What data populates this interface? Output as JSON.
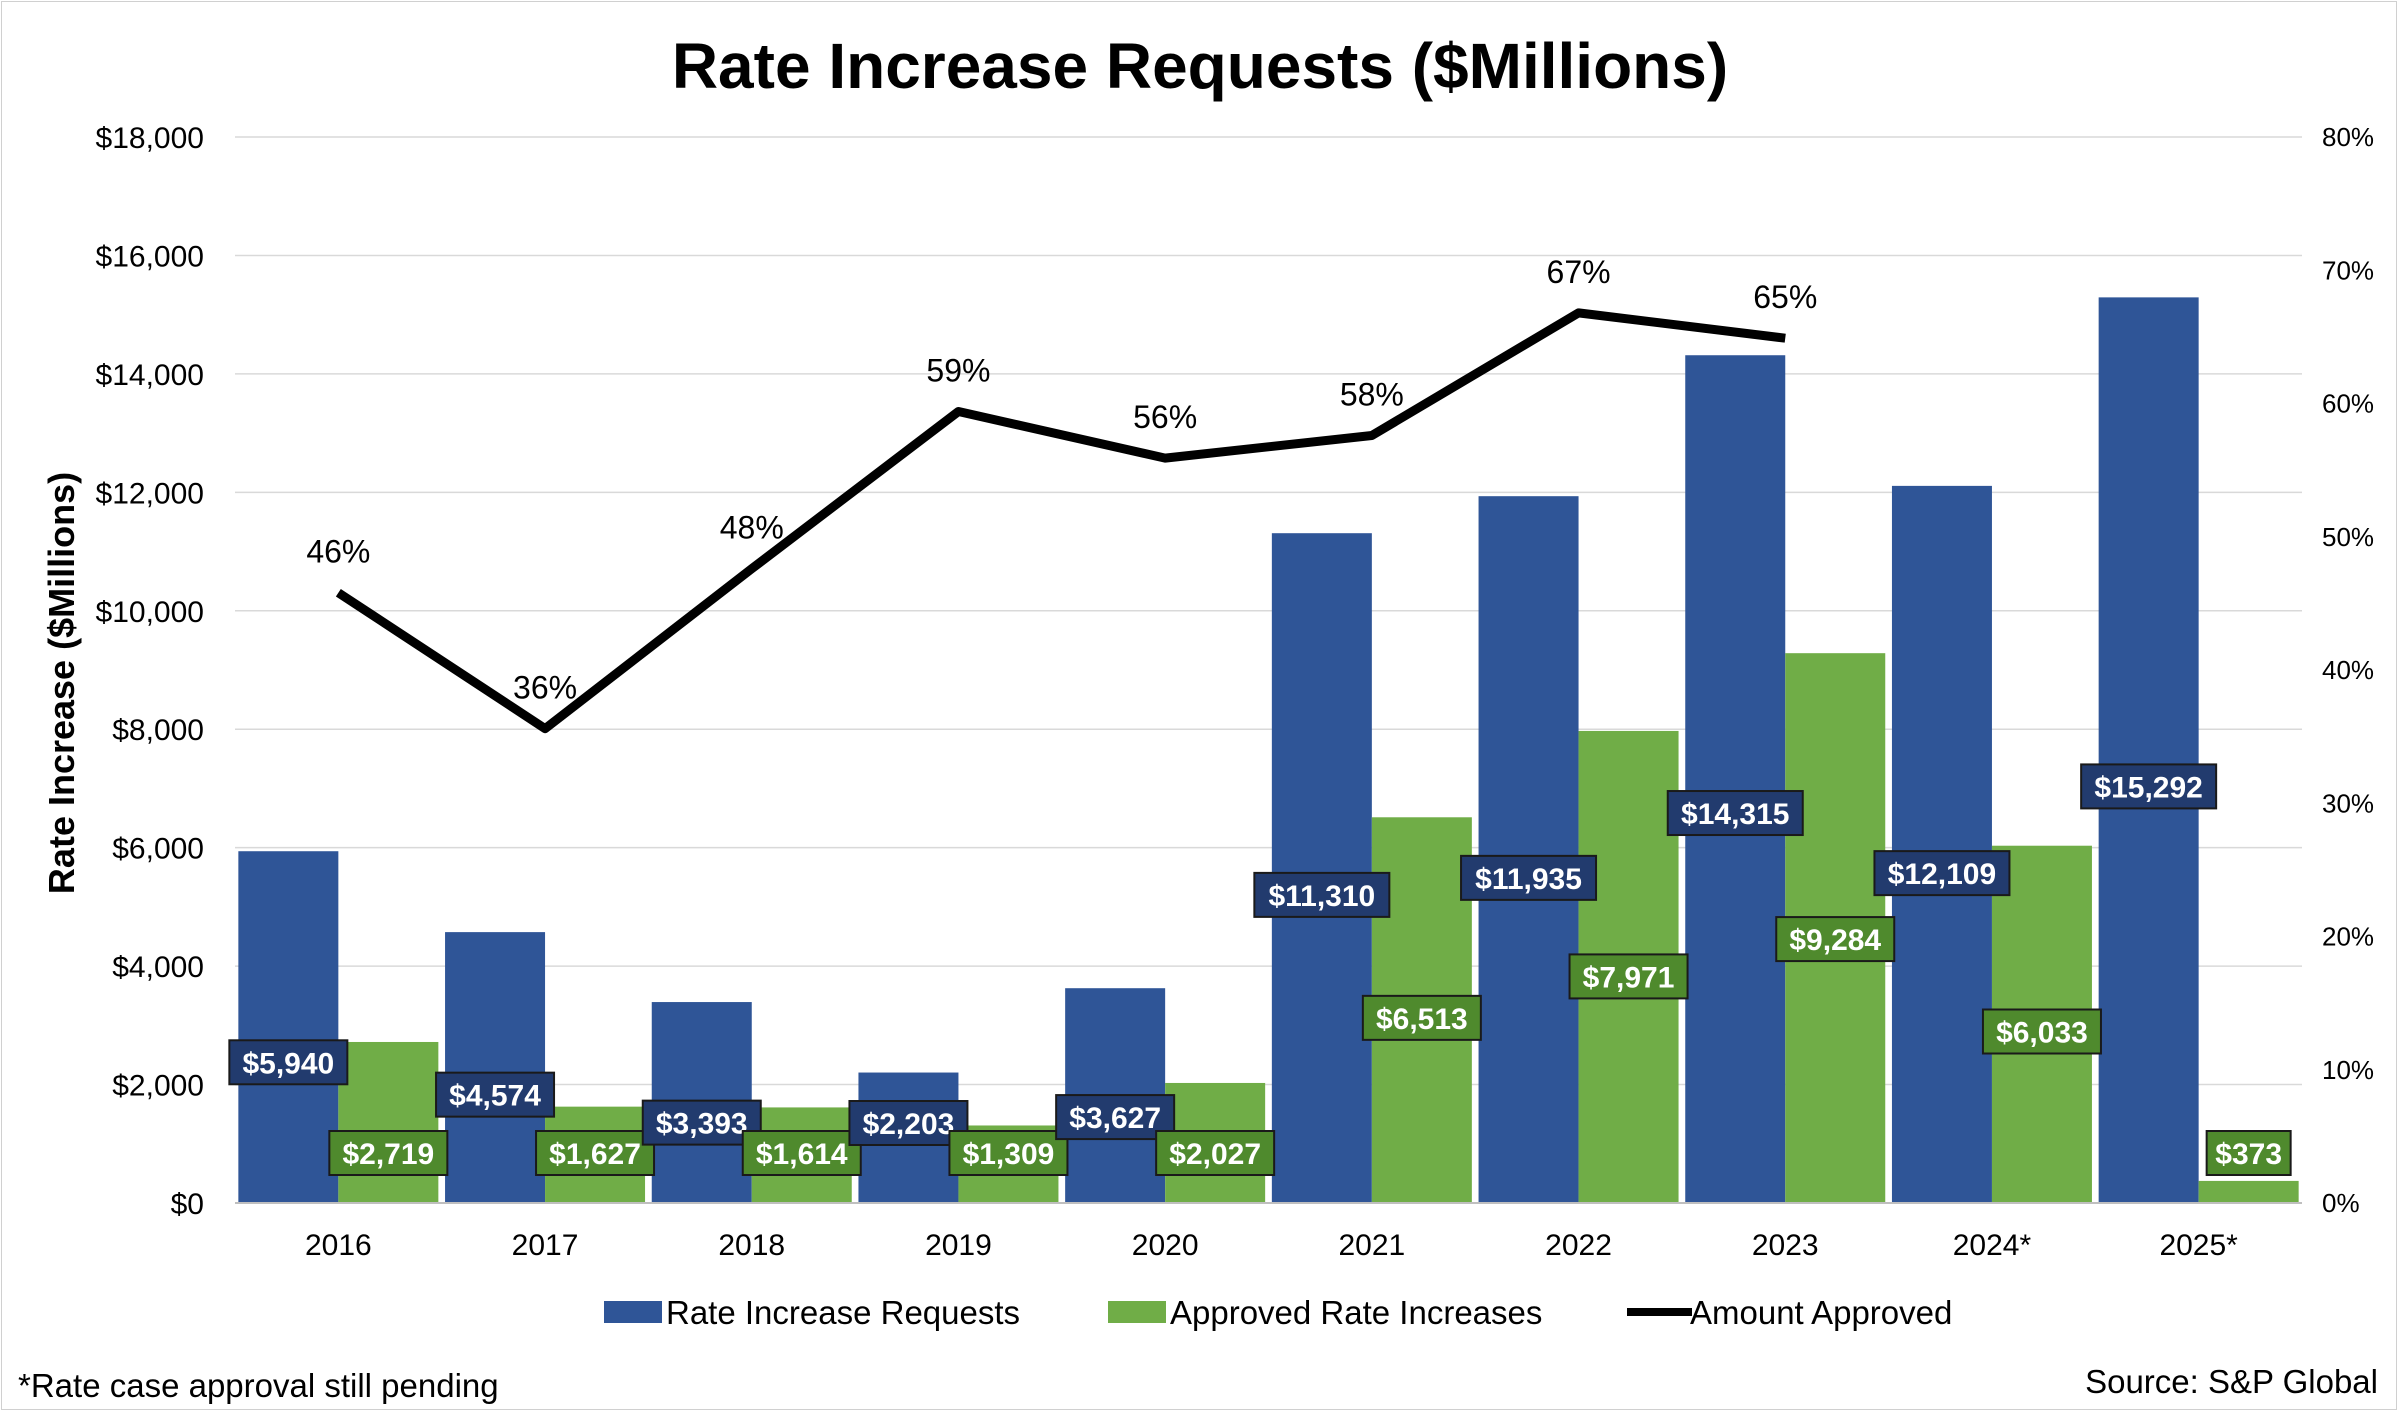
{
  "chart_data": {
    "type": "bar",
    "title": "Rate Increase Requests ($Millions)",
    "ylabel": "Rate Increase ($Millions)",
    "ylim": [
      0,
      18000
    ],
    "y_ticks": [
      "$0",
      "$2,000",
      "$4,000",
      "$6,000",
      "$8,000",
      "$10,000",
      "$12,000",
      "$14,000",
      "$16,000",
      "$18,000"
    ],
    "y2lim": [
      0,
      80
    ],
    "y2_ticks": [
      "0%",
      "10%",
      "20%",
      "30%",
      "40%",
      "50%",
      "60%",
      "70%",
      "80%"
    ],
    "categories": [
      "2016",
      "2017",
      "2018",
      "2019",
      "2020",
      "2021",
      "2022",
      "2023",
      "2024*",
      "2025*"
    ],
    "series": [
      {
        "name": "Rate Increase Requests",
        "kind": "bar",
        "color": "#2F5597",
        "values": [
          5940,
          4574,
          3393,
          2203,
          3627,
          11310,
          11935,
          14315,
          12109,
          15292
        ],
        "labels": [
          "$5,940",
          "$4,574",
          "$3,393",
          "$2,203",
          "$3,627",
          "$11,310",
          "$11,935",
          "$14,315",
          "$12,109",
          "$15,292"
        ]
      },
      {
        "name": "Approved Rate Increases",
        "kind": "bar",
        "color": "#70AD47",
        "values": [
          2719,
          1627,
          1614,
          1309,
          2027,
          6513,
          7971,
          9284,
          6033,
          373
        ],
        "labels": [
          "$2,719",
          "$1,627",
          "$1,614",
          "$1,309",
          "$2,027",
          "$6,513",
          "$7,971",
          "$9,284",
          "$6,033",
          "$373"
        ]
      },
      {
        "name": "Amount Approved",
        "kind": "line",
        "axis": "right",
        "color": "#000000",
        "values": [
          45.8,
          35.6,
          47.6,
          59.4,
          55.9,
          57.6,
          66.8,
          64.9,
          null,
          null
        ],
        "labels": [
          "46%",
          "36%",
          "48%",
          "59%",
          "56%",
          "58%",
          "67%",
          "65%",
          null,
          null
        ]
      }
    ],
    "legend_position": "bottom"
  },
  "footnote": "*Rate case approval still pending",
  "source": "Source: S&P Global"
}
